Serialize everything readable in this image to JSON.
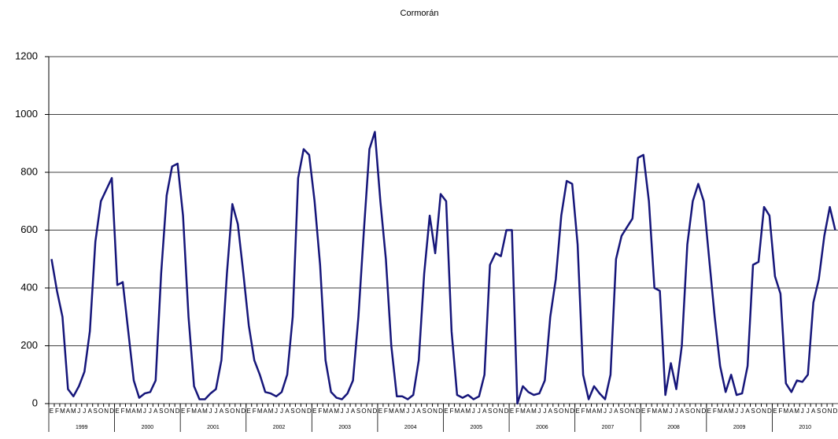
{
  "chart_data": {
    "type": "line",
    "title": "Cormorán",
    "categories": [
      "E",
      "F",
      "M",
      "A",
      "M",
      "J",
      "J",
      "A",
      "S",
      "O",
      "N",
      "D",
      "E",
      "F",
      "M",
      "A",
      "M",
      "J",
      "J",
      "A",
      "S",
      "O",
      "N",
      "D",
      "E",
      "F",
      "M",
      "A",
      "M",
      "J",
      "J",
      "A",
      "S",
      "O",
      "N",
      "D",
      "E",
      "F",
      "M",
      "A",
      "M",
      "J",
      "J",
      "A",
      "S",
      "O",
      "N",
      "D",
      "E",
      "F",
      "M",
      "A",
      "M",
      "J",
      "J",
      "A",
      "S",
      "O",
      "N",
      "D",
      "E",
      "F",
      "M",
      "A",
      "M",
      "J",
      "J",
      "A",
      "S",
      "O",
      "N",
      "D",
      "E",
      "F",
      "M",
      "A",
      "M",
      "J",
      "J",
      "A",
      "S",
      "O",
      "N",
      "D",
      "E",
      "F",
      "M",
      "A",
      "M",
      "J",
      "J",
      "A",
      "S",
      "O",
      "N",
      "D",
      "E",
      "F",
      "M",
      "A",
      "M",
      "J",
      "J",
      "A",
      "S",
      "O",
      "N",
      "D",
      "E",
      "F",
      "M",
      "A",
      "M",
      "J",
      "J",
      "A",
      "S",
      "O",
      "N",
      "D",
      "E",
      "F",
      "M",
      "A",
      "M",
      "J",
      "J",
      "A",
      "S",
      "O",
      "N",
      "D",
      "E",
      "F",
      "M",
      "A",
      "M",
      "J",
      "J",
      "A",
      "S",
      "O",
      "N",
      "D"
    ],
    "years": [
      "1999",
      "2000",
      "2001",
      "2002",
      "2003",
      "2004",
      "2005",
      "2006",
      "2007",
      "2008",
      "2009",
      "2010"
    ],
    "series": [
      {
        "color": "#16167a",
        "values": [
          500,
          390,
          300,
          50,
          25,
          60,
          110,
          250,
          560,
          700,
          740,
          780,
          410,
          420,
          250,
          80,
          20,
          35,
          40,
          80,
          450,
          720,
          820,
          830,
          650,
          300,
          60,
          15,
          15,
          35,
          50,
          150,
          450,
          690,
          620,
          450,
          270,
          150,
          100,
          40,
          35,
          25,
          40,
          100,
          300,
          780,
          880,
          860,
          700,
          480,
          150,
          40,
          20,
          15,
          35,
          80,
          300,
          600,
          880,
          940,
          700,
          500,
          200,
          25,
          25,
          15,
          30,
          150,
          450,
          650,
          520,
          725,
          700,
          250,
          30,
          20,
          30,
          15,
          25,
          100,
          480,
          520,
          510,
          600,
          600,
          0,
          60,
          40,
          30,
          35,
          80,
          300,
          430,
          650,
          770,
          760,
          550,
          100,
          15,
          60,
          35,
          15,
          100,
          500,
          580,
          610,
          640,
          850,
          860,
          700,
          400,
          390,
          30,
          140,
          50,
          200,
          550,
          700,
          760,
          700,
          500,
          300,
          130,
          40,
          100,
          30,
          35,
          130,
          480,
          490,
          680,
          650,
          440,
          380,
          70,
          40,
          80,
          75,
          100,
          350,
          430,
          580,
          680,
          600
        ]
      }
    ],
    "ylim": [
      0,
      1200
    ],
    "yticks": [
      0,
      200,
      400,
      600,
      800,
      1000,
      1200
    ],
    "grid": true
  }
}
